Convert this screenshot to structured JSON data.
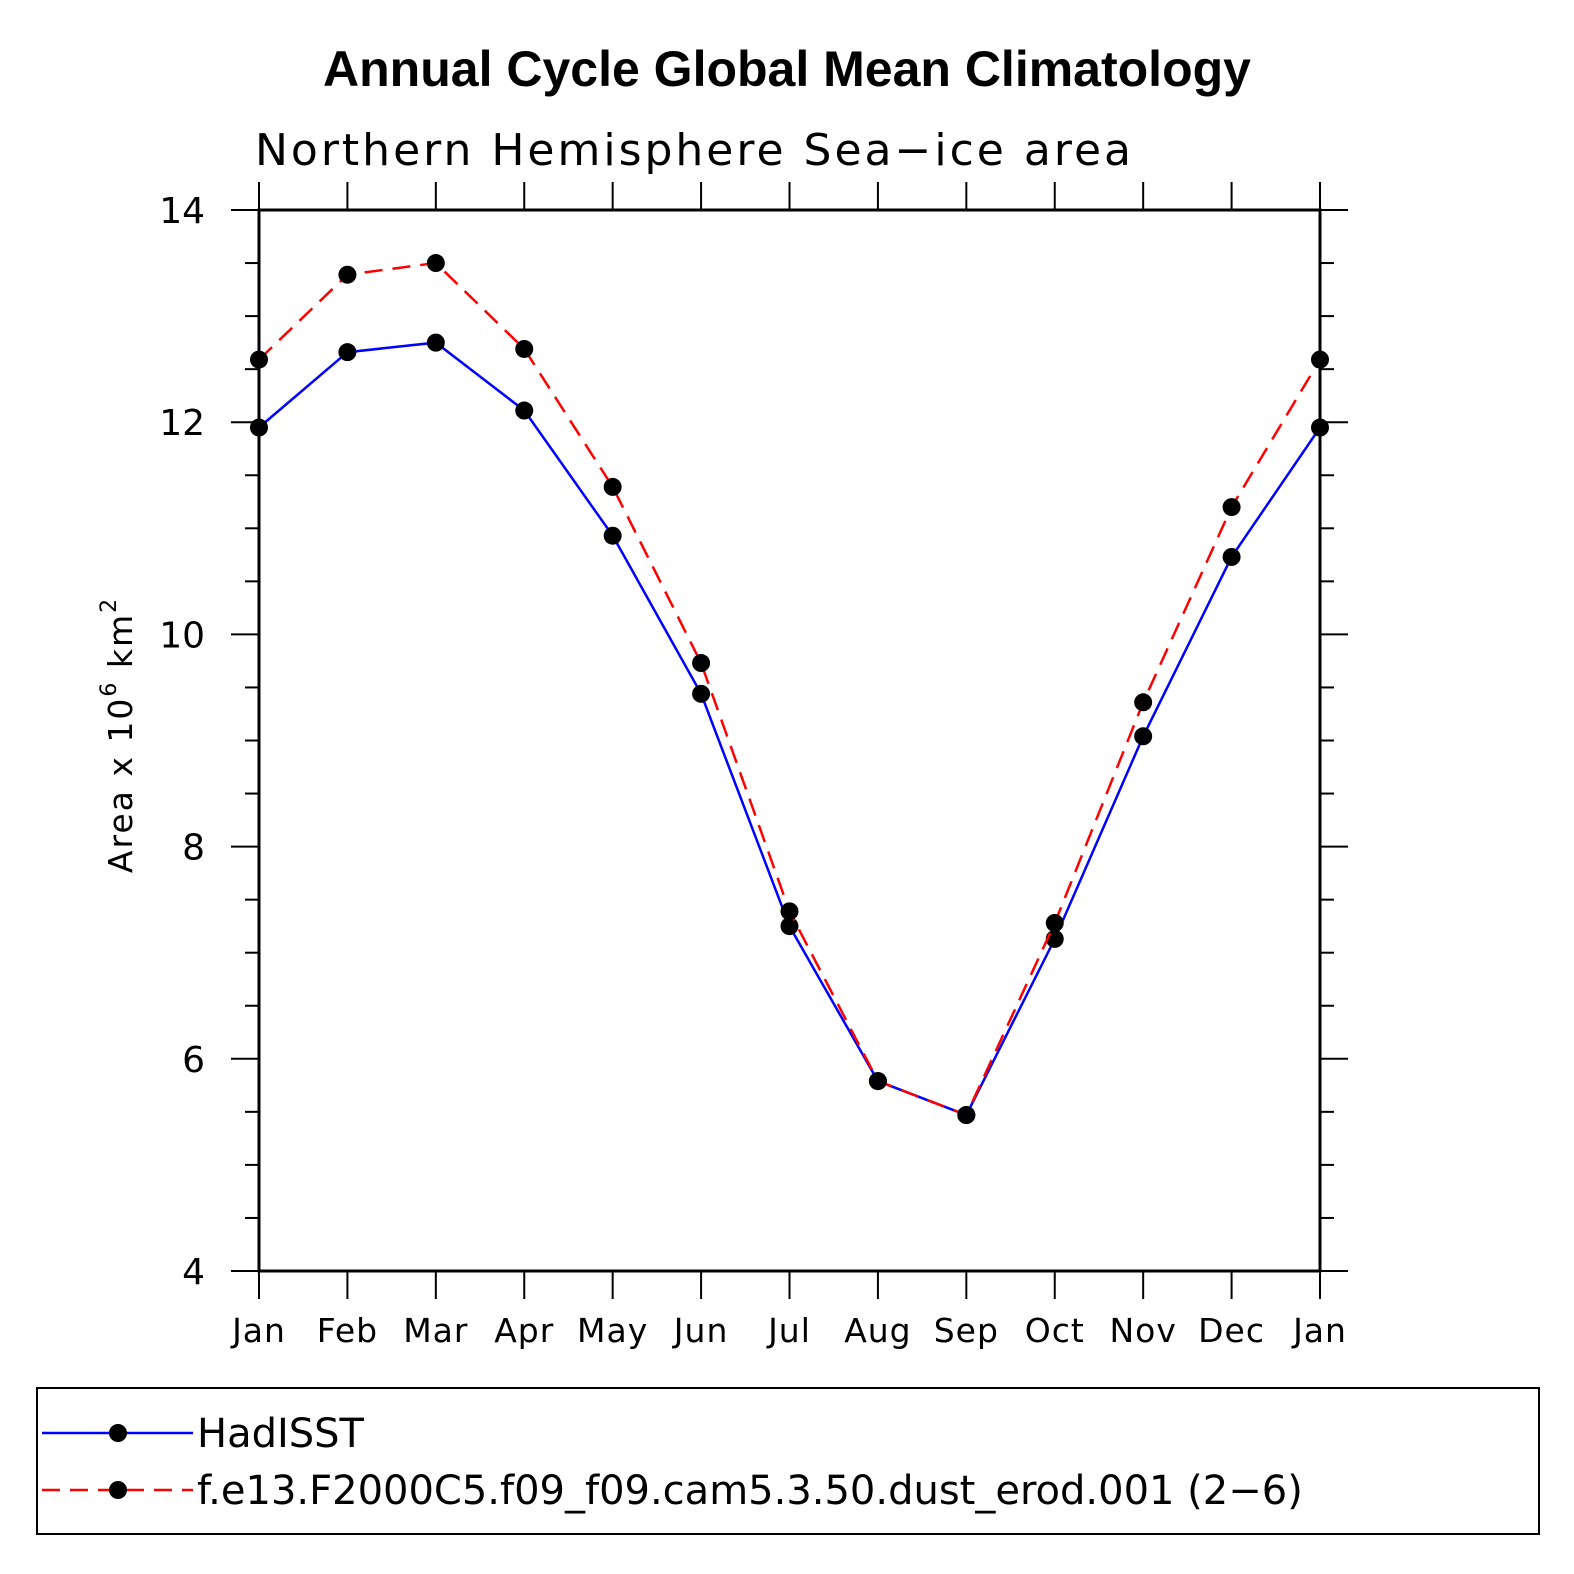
{
  "chart_data": {
    "type": "line",
    "title": "Annual Cycle Global Mean Climatology",
    "subtitle": "Northern Hemisphere Sea−ice area",
    "ylabel": "Area x 10",
    "ylabel_sup": "6",
    "ylabel_unit": " km",
    "ylabel_unit_sup": "2",
    "xlabel": "",
    "ylim": [
      4,
      14
    ],
    "yticks": [
      "4",
      "6",
      "8",
      "10",
      "12",
      "14"
    ],
    "categories": [
      "Jan",
      "Feb",
      "Mar",
      "Apr",
      "May",
      "Jun",
      "Jul",
      "Aug",
      "Sep",
      "Oct",
      "Nov",
      "Dec",
      "Jan"
    ],
    "series": [
      {
        "name": "HadISST",
        "color": "#0000ff",
        "dash": "solid",
        "values": [
          11.95,
          12.66,
          12.75,
          12.11,
          10.93,
          9.44,
          7.25,
          5.79,
          5.47,
          7.13,
          9.04,
          10.73,
          11.95
        ]
      },
      {
        "name": "f.e13.F2000C5.f09_f09.cam5.3.50.dust_erod.001 (2−6)",
        "color": "#ff0000",
        "dash": "dashed",
        "values": [
          12.59,
          13.39,
          13.5,
          12.69,
          11.39,
          9.73,
          7.39,
          5.79,
          5.47,
          7.28,
          9.36,
          11.2,
          12.59
        ]
      }
    ],
    "marker": "filled-circle",
    "grid": false,
    "legend_position": "bottom"
  }
}
